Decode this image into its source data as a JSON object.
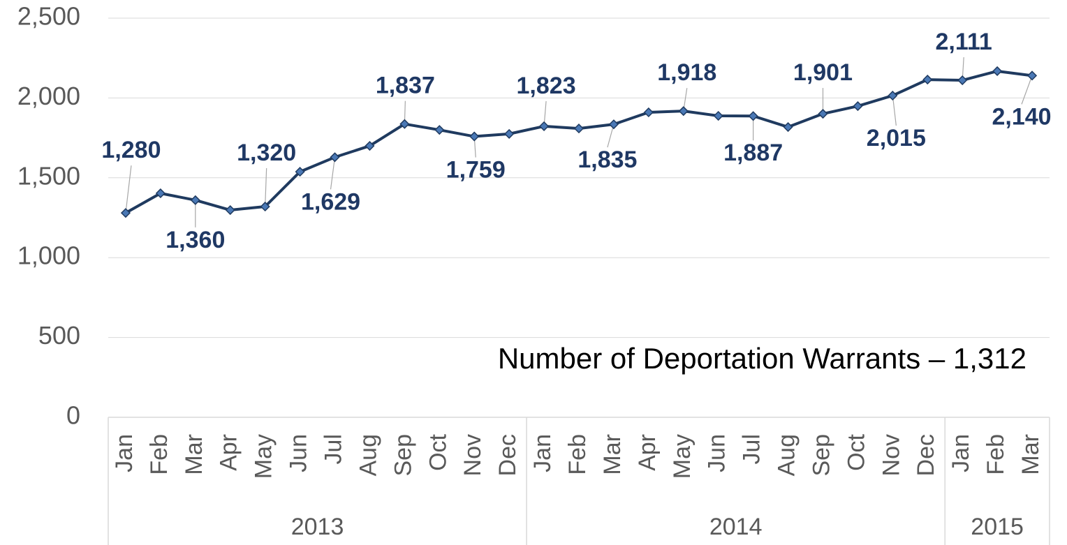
{
  "chart_data": {
    "type": "line",
    "annotation": "Number of Deportation Warrants – 1,312",
    "category_groups": [
      {
        "label": "2013",
        "categories": [
          "Jan",
          "Feb",
          "Mar",
          "Apr",
          "May",
          "Jun",
          "Jul",
          "Aug",
          "Sep",
          "Oct",
          "Nov",
          "Dec"
        ]
      },
      {
        "label": "2014",
        "categories": [
          "Jan",
          "Feb",
          "Mar",
          "Apr",
          "May",
          "Jun",
          "Jul",
          "Aug",
          "Sep",
          "Oct",
          "Nov",
          "Dec"
        ]
      },
      {
        "label": "2015",
        "categories": [
          "Jan",
          "Feb",
          "Mar"
        ]
      }
    ],
    "values": [
      1280,
      1403,
      1360,
      1298,
      1320,
      1538,
      1629,
      1700,
      1837,
      1800,
      1759,
      1775,
      1823,
      1809,
      1835,
      1910,
      1918,
      1888,
      1887,
      1818,
      1901,
      1949,
      2015,
      2115,
      2111,
      2168,
      2140
    ],
    "value_labels": [
      "1,280",
      null,
      "1,360",
      null,
      "1,320",
      null,
      "1,629",
      null,
      "1,837",
      null,
      "1,759",
      null,
      "1,823",
      null,
      "1,835",
      null,
      "1,918",
      null,
      "1,887",
      null,
      "1,901",
      null,
      "2,015",
      null,
      "2,111",
      null,
      "2,140"
    ],
    "color": "#1f3a5f",
    "marker_color": "#4a78b5",
    "ylim": [
      0,
      2500
    ],
    "yticks": [
      0,
      500,
      {
        "value": 1000,
        "label": "1,000"
      },
      {
        "value": 1500,
        "label": "1,500"
      },
      {
        "value": 2000,
        "label": "2,000"
      },
      {
        "value": 2500,
        "label": "2,500"
      }
    ],
    "grid": true
  }
}
